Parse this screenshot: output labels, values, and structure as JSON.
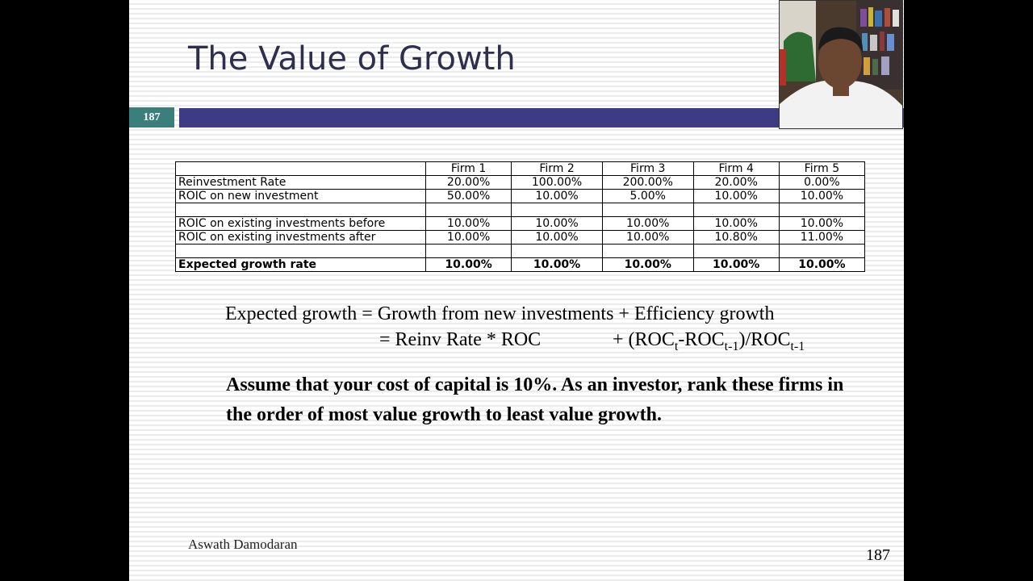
{
  "slide": {
    "title": "The Value of Growth",
    "slide_number_badge": "187",
    "author": "Aswath Damodaran",
    "page_number": "187"
  },
  "table": {
    "headers": [
      "",
      "Firm 1",
      "Firm 2",
      "Firm 3",
      "Firm 4",
      "Firm 5"
    ],
    "rows": [
      {
        "label": "Reinvestment Rate",
        "values": [
          "20.00%",
          "100.00%",
          "200.00%",
          "20.00%",
          "0.00%"
        ]
      },
      {
        "label": "ROIC on new investment",
        "values": [
          "50.00%",
          "10.00%",
          "5.00%",
          "10.00%",
          "10.00%"
        ]
      },
      {
        "label": "",
        "values": [
          "",
          "",
          "",
          "",
          ""
        ]
      },
      {
        "label": "ROIC on existing investments before",
        "values": [
          "10.00%",
          "10.00%",
          "10.00%",
          "10.00%",
          "10.00%"
        ]
      },
      {
        "label": "ROIC on existing investments after",
        "values": [
          "10.00%",
          "10.00%",
          "10.00%",
          "10.80%",
          "11.00%"
        ]
      },
      {
        "label": "",
        "values": [
          "",
          "",
          "",
          "",
          ""
        ]
      },
      {
        "label": "Expected growth rate",
        "values": [
          "10.00%",
          "10.00%",
          "10.00%",
          "10.00%",
          "10.00%"
        ]
      }
    ]
  },
  "formula": {
    "line1": "Expected growth = Growth from new investments + Efficiency growth",
    "line2_left": "= Reinv Rate * ROC",
    "line2_right_a": "+ (ROC",
    "line2_sub_t": "t",
    "line2_right_b": "-ROC",
    "line2_sub_t1": "t-1",
    "line2_right_c": ")/ROC",
    "line2_sub_t1b": "t-1"
  },
  "question": "Assume that your cost of capital is 10%. As an investor, rank these firms in the order of most value growth to least value growth."
}
